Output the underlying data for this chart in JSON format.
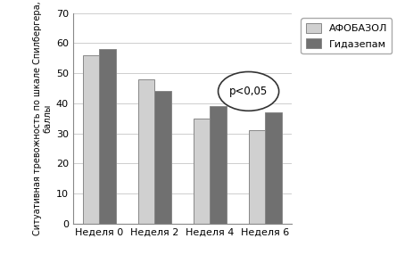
{
  "categories": [
    "Неделя 0",
    "Неделя 2",
    "Неделя 4",
    "Неделя 6"
  ],
  "afobazol": [
    56,
    48,
    35,
    31
  ],
  "gidazepam": [
    58,
    44,
    39,
    37
  ],
  "afobazol_color": "#d0d0d0",
  "gidazepam_color": "#707070",
  "ylabel": "Ситуативная тревожность по шкале Спилбергера,\nбаллы",
  "ylim": [
    0,
    70
  ],
  "yticks": [
    0,
    10,
    20,
    30,
    40,
    50,
    60,
    70
  ],
  "legend_afobazol": "АФОБАЗОЛ",
  "legend_gidazepam": "Гидазепам",
  "annotation": "p<0,05",
  "bar_width": 0.3
}
